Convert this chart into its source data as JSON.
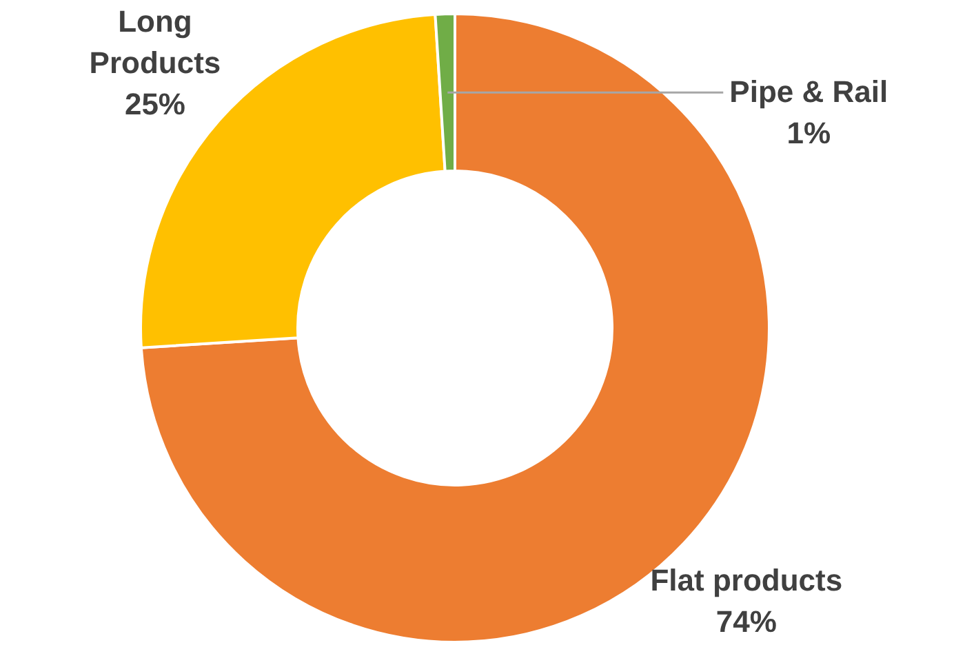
{
  "chart_data": {
    "type": "donut",
    "categories": [
      "Flat products",
      "Long Products",
      "Pipe & Rail"
    ],
    "values": [
      74,
      25,
      1
    ],
    "colors": [
      "#ed7d31",
      "#ffc000",
      "#70ad47"
    ],
    "value_labels": [
      "74%",
      "25%",
      "1%"
    ]
  }
}
